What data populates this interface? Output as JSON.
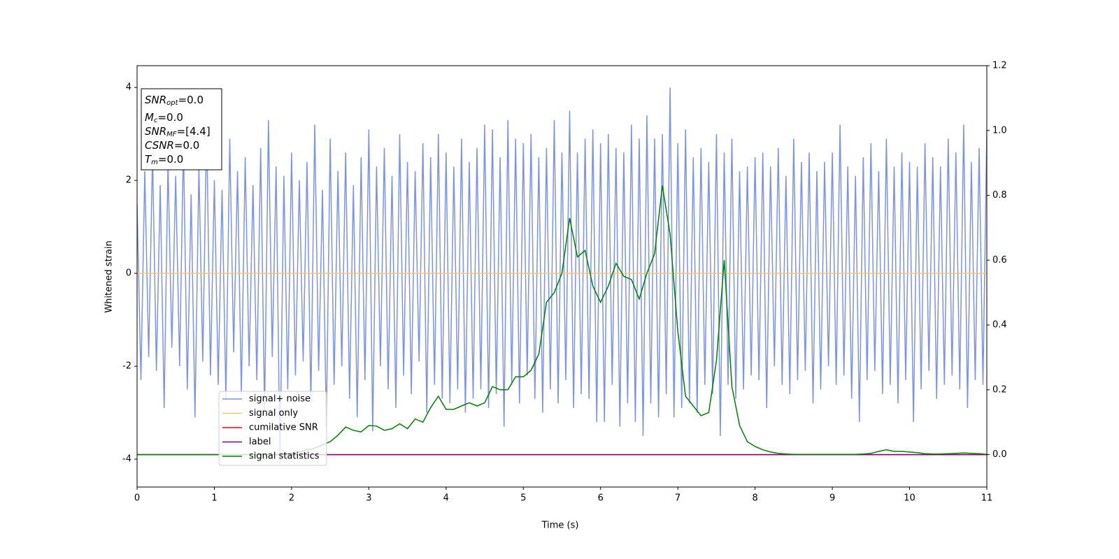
{
  "chart_data": {
    "type": "line",
    "xlabel": "Time (s)",
    "ylabel": "Whitened strain",
    "xlim": [
      0,
      11
    ],
    "xticks": [
      0,
      1,
      2,
      3,
      4,
      5,
      6,
      7,
      8,
      9,
      10,
      11
    ],
    "ylim": [
      -4.6,
      4.47
    ],
    "yticks": [
      -4,
      -2,
      0,
      2,
      4
    ],
    "y2lim": [
      -0.1,
      1.2
    ],
    "y2ticks": [
      {
        "value": 0,
        "label": "0.0"
      },
      {
        "value": 0.2,
        "label": "0.2"
      },
      {
        "value": 0.4,
        "label": "0.4"
      },
      {
        "value": 0.6,
        "label": "0.6"
      },
      {
        "value": 0.8,
        "label": "0.8"
      },
      {
        "value": 1.0,
        "label": "1.0"
      },
      {
        "value": 1.2,
        "label": "1.2"
      }
    ],
    "annotations": [
      {
        "symbol": "SNR",
        "sub": "opt",
        "text": "=0.0"
      },
      {
        "symbol": "M",
        "sub": "c",
        "text": "=0.0"
      },
      {
        "symbol": "SNR",
        "sub": "MF",
        "text": "=[4.4]"
      },
      {
        "symbol": "CSNR",
        "text": "=0.0"
      },
      {
        "symbol": "T",
        "sub": "m",
        "text": "=0.0"
      }
    ],
    "series": [
      {
        "name": "signal+ noise",
        "color": "#7b93e8",
        "axis": "y",
        "x": [
          0,
          0.05,
          0.1,
          0.15,
          0.2,
          0.25,
          0.3,
          0.35,
          0.4,
          0.45,
          0.5,
          0.55,
          0.6,
          0.65,
          0.7,
          0.75,
          0.8,
          0.85,
          0.9,
          0.95,
          1,
          1.05,
          1.1,
          1.15,
          1.2,
          1.25,
          1.3,
          1.35,
          1.4,
          1.45,
          1.5,
          1.55,
          1.6,
          1.65,
          1.7,
          1.75,
          1.8,
          1.85,
          1.9,
          1.95,
          2,
          2.05,
          2.1,
          2.15,
          2.2,
          2.25,
          2.3,
          2.35,
          2.4,
          2.45,
          2.5,
          2.55,
          2.6,
          2.65,
          2.7,
          2.75,
          2.8,
          2.85,
          2.9,
          2.95,
          3,
          3.05,
          3.1,
          3.15,
          3.2,
          3.25,
          3.3,
          3.35,
          3.4,
          3.45,
          3.5,
          3.55,
          3.6,
          3.65,
          3.7,
          3.75,
          3.8,
          3.85,
          3.9,
          3.95,
          4,
          4.05,
          4.1,
          4.15,
          4.2,
          4.25,
          4.3,
          4.35,
          4.4,
          4.45,
          4.5,
          4.55,
          4.6,
          4.65,
          4.7,
          4.75,
          4.8,
          4.85,
          4.9,
          4.95,
          5,
          5.05,
          5.1,
          5.15,
          5.2,
          5.25,
          5.3,
          5.35,
          5.4,
          5.45,
          5.5,
          5.55,
          5.6,
          5.65,
          5.7,
          5.75,
          5.8,
          5.85,
          5.9,
          5.95,
          6,
          6.05,
          6.1,
          6.15,
          6.2,
          6.25,
          6.3,
          6.35,
          6.4,
          6.45,
          6.5,
          6.55,
          6.6,
          6.65,
          6.7,
          6.75,
          6.8,
          6.85,
          6.9,
          6.95,
          7,
          7.05,
          7.1,
          7.15,
          7.2,
          7.25,
          7.3,
          7.35,
          7.4,
          7.45,
          7.5,
          7.55,
          7.6,
          7.65,
          7.7,
          7.75,
          7.8,
          7.85,
          7.9,
          7.95,
          8,
          8.05,
          8.1,
          8.15,
          8.2,
          8.25,
          8.3,
          8.35,
          8.4,
          8.45,
          8.5,
          8.55,
          8.6,
          8.65,
          8.7,
          8.75,
          8.8,
          8.85,
          8.9,
          8.95,
          9,
          9.05,
          9.1,
          9.15,
          9.2,
          9.25,
          9.3,
          9.35,
          9.4,
          9.45,
          9.5,
          9.55,
          9.6,
          9.65,
          9.7,
          9.75,
          9.8,
          9.85,
          9.9,
          9.95,
          10,
          10.05,
          10.1,
          10.15,
          10.2,
          10.25,
          10.3,
          10.35,
          10.4,
          10.45,
          10.5,
          10.55,
          10.6,
          10.65,
          10.7,
          10.75,
          10.8,
          10.85,
          10.9,
          10.95,
          11
        ],
        "values": [
          1.5,
          -2.3,
          2.2,
          -1.8,
          2.6,
          -2.1,
          1.9,
          -2.9,
          2.4,
          -1.6,
          2.1,
          -2.0,
          2.8,
          -2.5,
          1.7,
          -3.1,
          2.3,
          -1.9,
          3.2,
          -2.2,
          2.0,
          -2.4,
          1.8,
          -2.7,
          2.9,
          -1.7,
          2.2,
          -2.6,
          2.5,
          -2.0,
          1.9,
          -2.3,
          2.7,
          -3.0,
          3.3,
          -1.8,
          2.3,
          -4.1,
          2.1,
          -2.5,
          2.6,
          -2.2,
          2.0,
          -1.9,
          2.4,
          -2.8,
          3.2,
          -2.1,
          1.8,
          -3.3,
          2.9,
          -2.4,
          2.2,
          -2.0,
          2.6,
          -2.7,
          1.9,
          -3.1,
          2.5,
          -2.3,
          3.1,
          -3.4,
          2.3,
          -2.0,
          2.7,
          -2.5,
          2.1,
          -2.9,
          3.0,
          -2.2,
          2.4,
          -2.6,
          2.2,
          -1.9,
          2.8,
          -3.0,
          2.5,
          -2.4,
          3.0,
          -2.7,
          2.6,
          -2.8,
          2.3,
          -2.5,
          2.9,
          -3.0,
          2.4,
          -2.7,
          2.7,
          -2.5,
          3.2,
          -2.9,
          3.1,
          -2.6,
          2.5,
          -3.3,
          3.3,
          -2.4,
          2.9,
          -2.8,
          2.8,
          -2.2,
          3.0,
          -2.7,
          2.5,
          -3.0,
          2.7,
          -2.5,
          3.3,
          -2.8,
          2.6,
          -2.3,
          3.5,
          -2.9,
          2.6,
          -2.6,
          2.9,
          -2.7,
          3.1,
          -3.2,
          2.8,
          -3.2,
          3.0,
          -2.4,
          2.7,
          -3.3,
          2.6,
          -2.8,
          3.2,
          -3.2,
          2.9,
          -3.5,
          3.4,
          -2.8,
          2.9,
          -3.1,
          3.0,
          -2.6,
          4.0,
          -3.1,
          2.8,
          -2.9,
          3.1,
          -2.8,
          2.5,
          -3.0,
          2.7,
          -2.4,
          2.4,
          -2.6,
          3.0,
          -3.5,
          2.6,
          -2.4,
          2.9,
          -2.7,
          2.2,
          -2.5,
          2.3,
          -2.2,
          2.5,
          -2.3,
          2.6,
          -2.9,
          2.3,
          -2.0,
          2.7,
          -2.4,
          2.1,
          -2.6,
          2.9,
          -2.3,
          2.4,
          -2.1,
          2.6,
          -2.8,
          2.2,
          -2.5,
          2.4,
          -2.0,
          2.6,
          -2.4,
          3.2,
          -2.2,
          2.3,
          -2.7,
          2.1,
          -3.2,
          2.5,
          -2.3,
          2.8,
          -2.1,
          2.2,
          -2.6,
          2.9,
          -2.4,
          2.3,
          -2.8,
          2.6,
          -2.3,
          2.4,
          -3.2,
          2.3,
          -2.5,
          2.8,
          -2.1,
          2.5,
          -2.7,
          2.3,
          -2.4,
          2.9,
          -2.2,
          2.6,
          -2.5,
          3.2,
          -2.9,
          2.4,
          -2.3,
          2.7,
          -2.4,
          3.1
        ]
      },
      {
        "name": "signal only",
        "color": "#ffc870",
        "axis": "y",
        "x": [
          0,
          11
        ],
        "values": [
          0,
          0
        ]
      },
      {
        "name": "cumilative SNR",
        "color": "#ff0000",
        "axis": "y2",
        "x": [
          0,
          11
        ],
        "values": [
          0,
          0
        ]
      },
      {
        "name": "label",
        "color": "#800080",
        "axis": "y2",
        "x": [
          0,
          11
        ],
        "values": [
          0,
          0
        ]
      },
      {
        "name": "signal statistics",
        "color": "#008000",
        "axis": "y2",
        "x": [
          0,
          0.1,
          0.2,
          0.3,
          0.4,
          0.5,
          0.6,
          0.7,
          0.8,
          0.9,
          1,
          1.1,
          1.2,
          1.3,
          1.4,
          1.5,
          1.6,
          1.7,
          1.8,
          1.9,
          2,
          2.1,
          2.2,
          2.3,
          2.4,
          2.5,
          2.6,
          2.7,
          2.8,
          2.9,
          3,
          3.1,
          3.2,
          3.3,
          3.4,
          3.5,
          3.6,
          3.7,
          3.8,
          3.9,
          4,
          4.1,
          4.2,
          4.3,
          4.4,
          4.5,
          4.6,
          4.7,
          4.8,
          4.9,
          5,
          5.1,
          5.2,
          5.3,
          5.4,
          5.5,
          5.6,
          5.7,
          5.8,
          5.9,
          6,
          6.1,
          6.2,
          6.3,
          6.4,
          6.5,
          6.6,
          6.7,
          6.8,
          6.9,
          7,
          7.1,
          7.2,
          7.3,
          7.4,
          7.5,
          7.6,
          7.7,
          7.8,
          7.9,
          8,
          8.1,
          8.2,
          8.3,
          8.4,
          8.5,
          8.6,
          8.7,
          8.8,
          8.9,
          9,
          9.1,
          9.2,
          9.3,
          9.4,
          9.5,
          9.6,
          9.7,
          9.8,
          9.9,
          10,
          10.1,
          10.2,
          10.3,
          10.4,
          10.5,
          10.6,
          10.7,
          10.8,
          10.9,
          11
        ],
        "values": [
          0,
          0,
          0,
          0,
          0,
          0,
          0,
          0,
          0,
          0,
          0,
          0,
          0,
          0,
          0,
          0,
          0,
          0,
          0.001,
          0.002,
          0.004,
          0.008,
          0.015,
          0.02,
          0.03,
          0.04,
          0.06,
          0.085,
          0.075,
          0.07,
          0.09,
          0.088,
          0.075,
          0.08,
          0.095,
          0.08,
          0.11,
          0.1,
          0.145,
          0.18,
          0.14,
          0.14,
          0.15,
          0.16,
          0.15,
          0.16,
          0.21,
          0.2,
          0.2,
          0.24,
          0.24,
          0.26,
          0.31,
          0.47,
          0.5,
          0.56,
          0.73,
          0.61,
          0.63,
          0.52,
          0.47,
          0.52,
          0.59,
          0.55,
          0.54,
          0.48,
          0.56,
          0.62,
          0.83,
          0.68,
          0.38,
          0.18,
          0.15,
          0.12,
          0.13,
          0.29,
          0.6,
          0.21,
          0.09,
          0.04,
          0.025,
          0.015,
          0.008,
          0.004,
          0.002,
          0.001,
          0.001,
          0.001,
          0.001,
          0.001,
          0.001,
          0.001,
          0.001,
          0.001,
          0.002,
          0.004,
          0.01,
          0.015,
          0.01,
          0.01,
          0.008,
          0.006,
          0.003,
          0.002,
          0.002,
          0.003,
          0.004,
          0.005,
          0.004,
          0.003,
          0.001
        ]
      }
    ]
  }
}
